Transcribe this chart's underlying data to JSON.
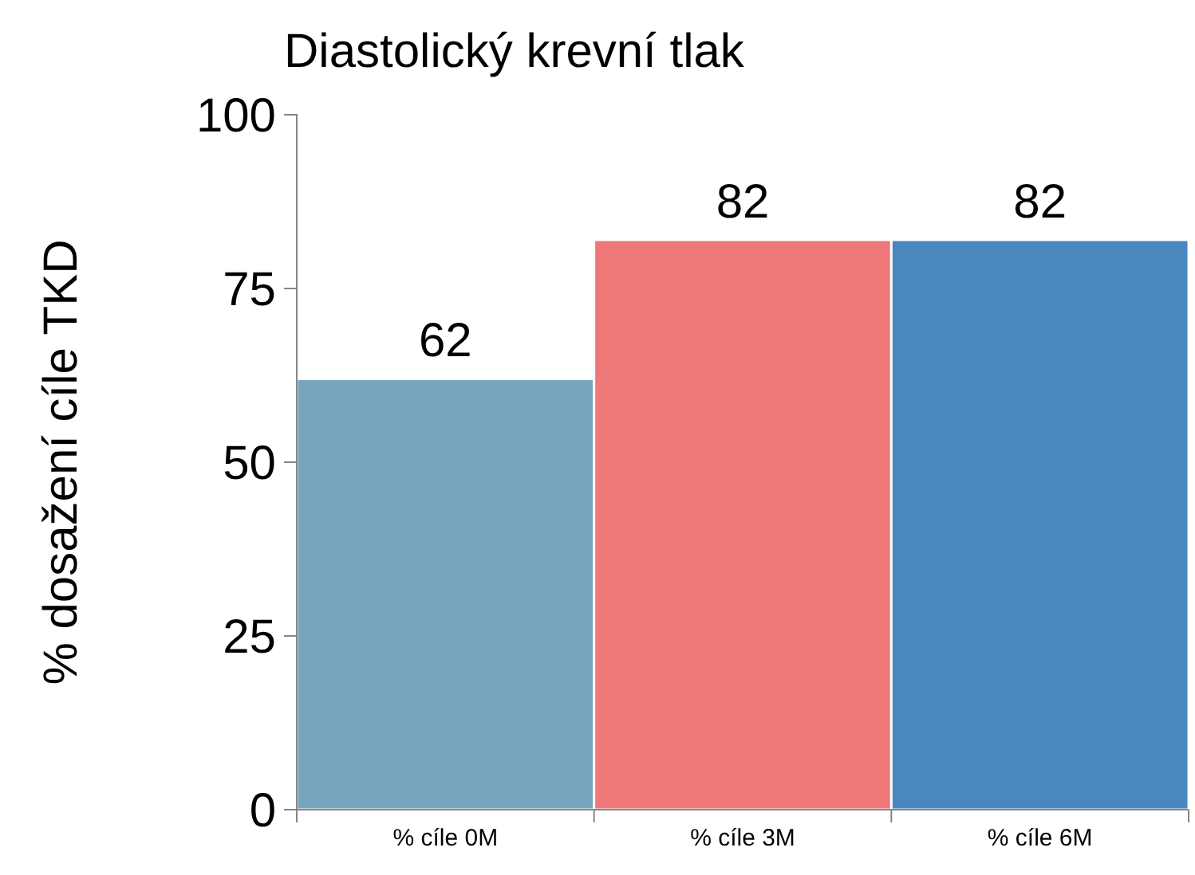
{
  "chart_data": {
    "type": "bar",
    "title": "Diastolický krevní tlak",
    "ylabel": "% dosažení cíle TKD",
    "categories": [
      "% cíle 0M",
      "% cíle 3M",
      "% cíle 6M"
    ],
    "values": [
      62,
      82,
      82
    ],
    "colors": [
      "#77a5be",
      "#ef7878",
      "#4a87c0"
    ],
    "ylim": [
      0,
      100
    ],
    "yticks": [
      0,
      25,
      50,
      75,
      100
    ],
    "data_labels": true,
    "grid": false
  }
}
